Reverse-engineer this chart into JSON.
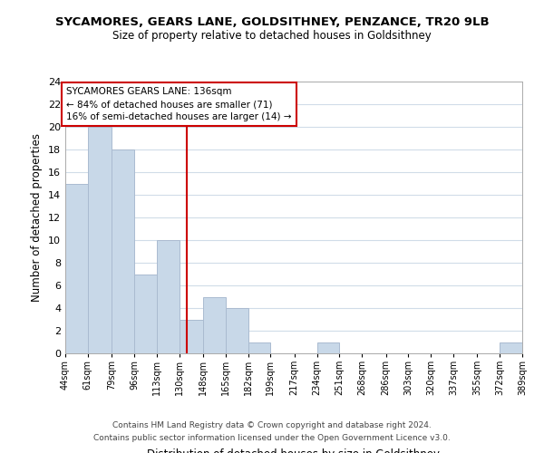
{
  "title": "SYCAMORES, GEARS LANE, GOLDSITHNEY, PENZANCE, TR20 9LB",
  "subtitle": "Size of property relative to detached houses in Goldsithney",
  "xlabel": "Distribution of detached houses by size in Goldsithney",
  "ylabel": "Number of detached properties",
  "bin_edges": [
    44,
    61,
    79,
    96,
    113,
    130,
    148,
    165,
    182,
    199,
    217,
    234,
    251,
    268,
    286,
    303,
    320,
    337,
    355,
    372,
    389
  ],
  "counts": [
    15,
    20,
    18,
    7,
    10,
    3,
    5,
    4,
    1,
    0,
    0,
    1,
    0,
    0,
    0,
    0,
    0,
    0,
    0,
    1
  ],
  "bar_color": "#c8d8e8",
  "bar_edge_color": "#aabbd0",
  "vline_x": 136,
  "vline_color": "#cc0000",
  "ylim": [
    0,
    24
  ],
  "yticks": [
    0,
    2,
    4,
    6,
    8,
    10,
    12,
    14,
    16,
    18,
    20,
    22,
    24
  ],
  "annotation_title": "SYCAMORES GEARS LANE: 136sqm",
  "annotation_line1": "← 84% of detached houses are smaller (71)",
  "annotation_line2": "16% of semi-detached houses are larger (14) →",
  "annotation_box_color": "#ffffff",
  "annotation_box_edge_color": "#cc0000",
  "footer_line1": "Contains HM Land Registry data © Crown copyright and database right 2024.",
  "footer_line2": "Contains public sector information licensed under the Open Government Licence v3.0.",
  "background_color": "#ffffff",
  "grid_color": "#d0dce8"
}
